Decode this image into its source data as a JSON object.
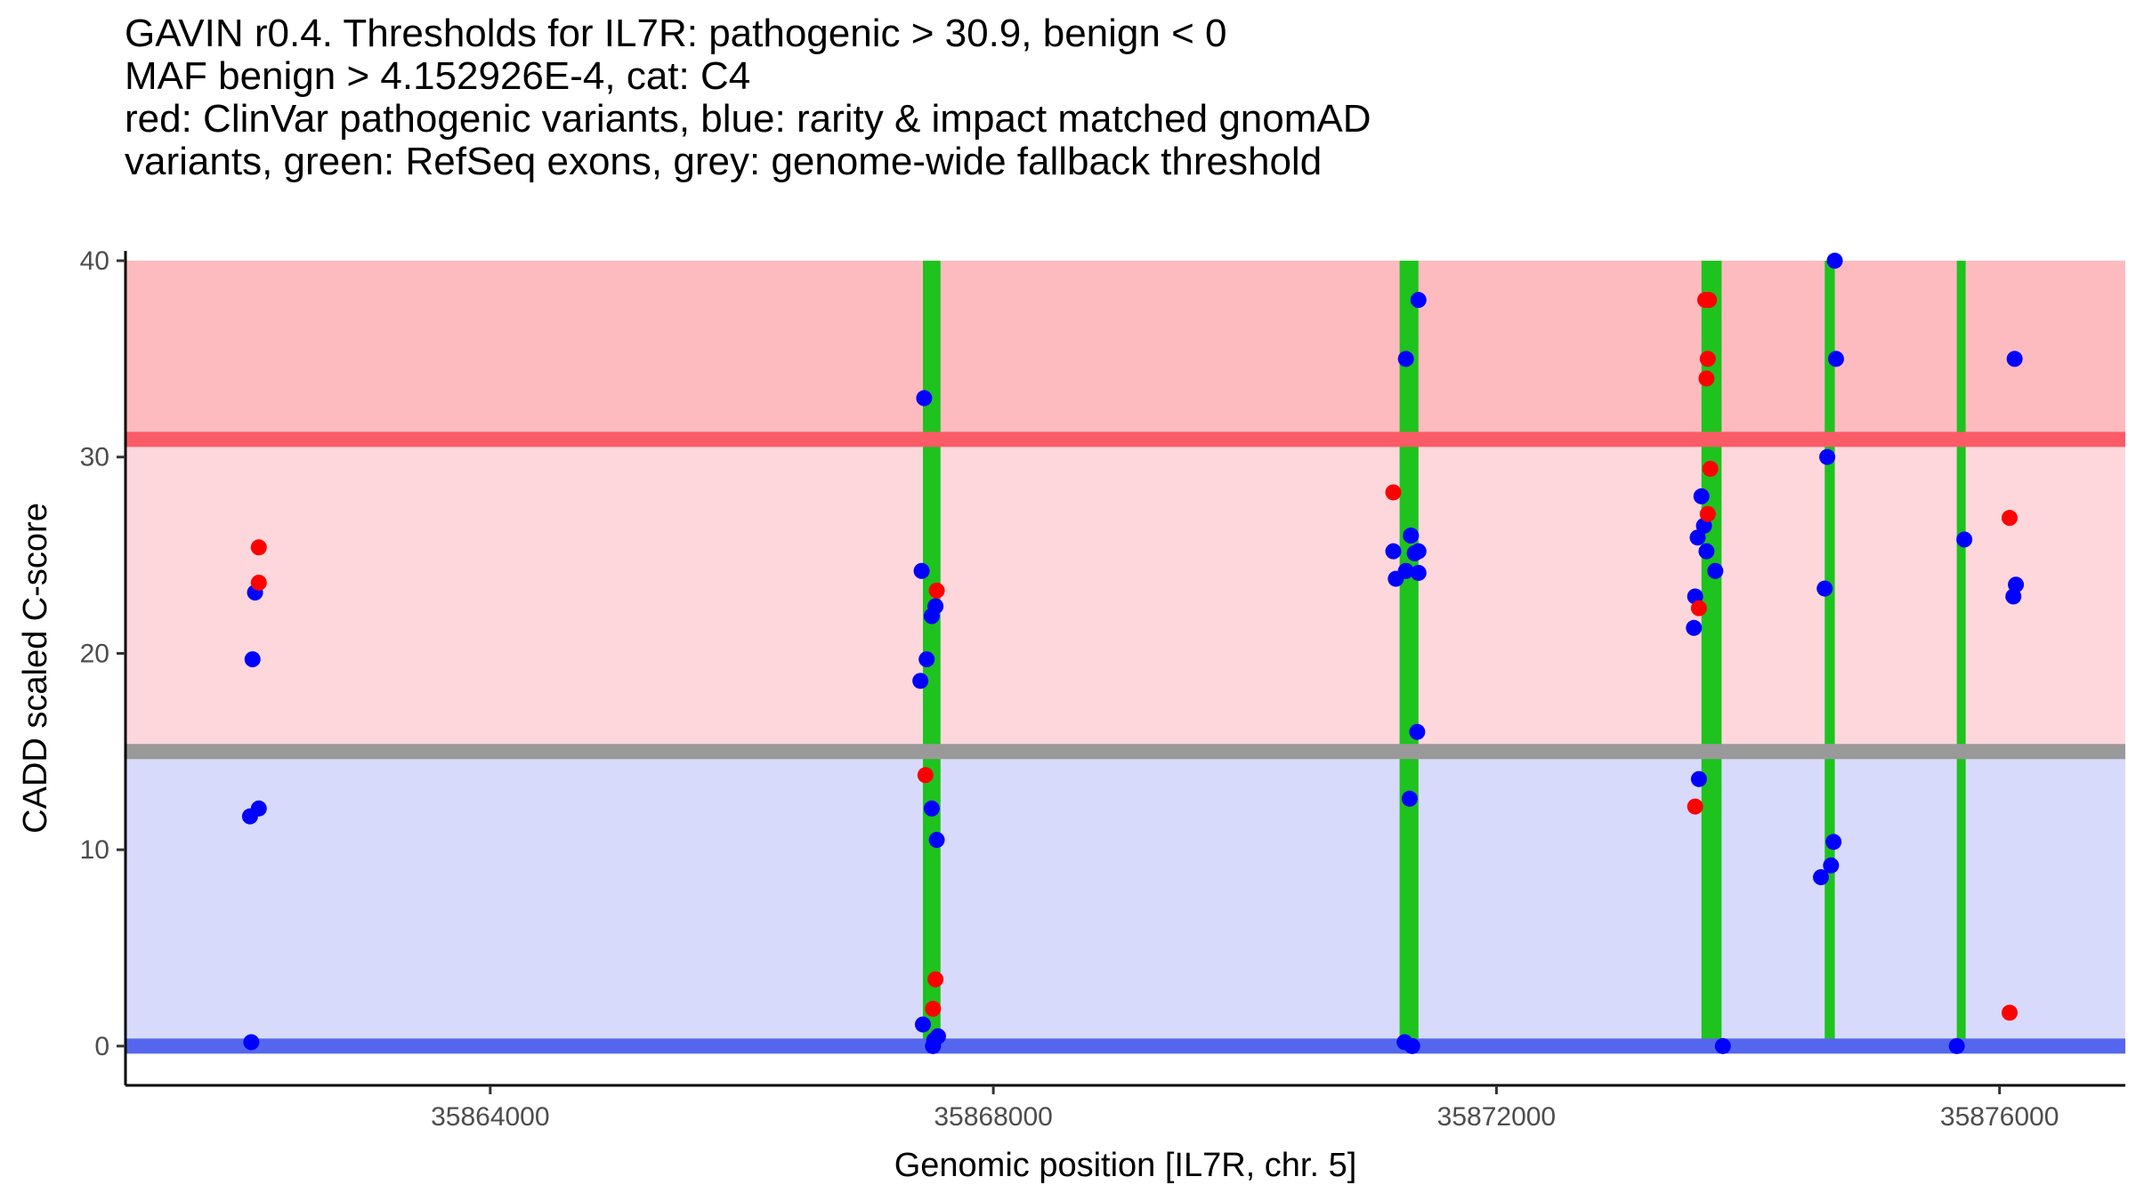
{
  "title_lines": [
    "GAVIN r0.4. Thresholds for IL7R: pathogenic > 30.9, benign < 0",
    "MAF benign > 4.152926E-4, cat: C4",
    "red: ClinVar pathogenic variants, blue: rarity & impact matched gnomAD",
    "variants, green: RefSeq exons, grey: genome-wide fallback threshold"
  ],
  "chart_data": {
    "type": "scatter",
    "xlabel": "Genomic position [IL7R, chr. 5]",
    "ylabel": "CADD scaled C-score",
    "xlim": [
      35861100,
      35877000
    ],
    "ylim": [
      -2,
      40.5
    ],
    "x_ticks": [
      35864000,
      35868000,
      35872000,
      35876000
    ],
    "x_tick_labels": [
      "35864000",
      "35868000",
      "35872000",
      "35876000"
    ],
    "y_ticks": [
      0,
      10,
      20,
      30,
      40
    ],
    "y_tick_labels": [
      "0",
      "10",
      "20",
      "30",
      "40"
    ],
    "grid": false,
    "bands": [
      {
        "color": "#fdbbc0",
        "y_from": 30.9,
        "y_to": 40
      },
      {
        "color": "#fdd7dc",
        "y_from": 15,
        "y_to": 30.9
      },
      {
        "color": "#d8dafb",
        "y_from": 0,
        "y_to": 15
      }
    ],
    "threshold_lines": [
      {
        "color": "#fb5b66",
        "y": 30.9
      },
      {
        "color": "#999999",
        "y": 15
      },
      {
        "color": "#5566ee",
        "y": 0
      }
    ],
    "exons": [
      {
        "start": 35867440,
        "end": 35867580
      },
      {
        "start": 35871230,
        "end": 35871380
      },
      {
        "start": 35873630,
        "end": 35873790
      },
      {
        "start": 35874610,
        "end": 35874690
      },
      {
        "start": 35875660,
        "end": 35875730
      }
    ],
    "colors": {
      "pathogenic": "#ff0000",
      "gnomad": "#0000ff",
      "exon": "#1ec31e"
    },
    "series": [
      {
        "name": "ClinVar pathogenic variants",
        "color": "#ff0000",
        "points": [
          [
            35862160,
            25.4
          ],
          [
            35862160,
            23.6
          ],
          [
            35867460,
            13.8
          ],
          [
            35867550,
            23.2
          ],
          [
            35867540,
            3.4
          ],
          [
            35867520,
            1.9
          ],
          [
            35871180,
            28.2
          ],
          [
            35873660,
            38.0
          ],
          [
            35873690,
            38.0
          ],
          [
            35873680,
            35.0
          ],
          [
            35873670,
            34.0
          ],
          [
            35873700,
            29.4
          ],
          [
            35873680,
            27.1
          ],
          [
            35873610,
            22.3
          ],
          [
            35873580,
            12.2
          ],
          [
            35876080,
            26.9
          ],
          [
            35876080,
            1.7
          ]
        ]
      },
      {
        "name": "gnomAD variants",
        "color": "#0000ff",
        "points": [
          [
            35862130,
            23.1
          ],
          [
            35862110,
            19.7
          ],
          [
            35862160,
            12.1
          ],
          [
            35862090,
            11.7
          ],
          [
            35862100,
            0.2
          ],
          [
            35867450,
            33.0
          ],
          [
            35867430,
            24.2
          ],
          [
            35867540,
            22.4
          ],
          [
            35867510,
            21.9
          ],
          [
            35867470,
            19.7
          ],
          [
            35867420,
            18.6
          ],
          [
            35867510,
            12.1
          ],
          [
            35867550,
            10.5
          ],
          [
            35867440,
            1.1
          ],
          [
            35867560,
            0.5
          ],
          [
            35867530,
            0.3
          ],
          [
            35867520,
            0.0
          ],
          [
            35871380,
            38.0
          ],
          [
            35871280,
            35.0
          ],
          [
            35871320,
            26.0
          ],
          [
            35871180,
            25.2
          ],
          [
            35871380,
            25.2
          ],
          [
            35871350,
            25.1
          ],
          [
            35871280,
            24.2
          ],
          [
            35871380,
            24.1
          ],
          [
            35871200,
            23.8
          ],
          [
            35871370,
            16.0
          ],
          [
            35871310,
            12.6
          ],
          [
            35871270,
            0.2
          ],
          [
            35871330,
            0.0
          ],
          [
            35873630,
            28.0
          ],
          [
            35873650,
            26.5
          ],
          [
            35873600,
            25.9
          ],
          [
            35873670,
            25.2
          ],
          [
            35873740,
            24.2
          ],
          [
            35873580,
            22.9
          ],
          [
            35873570,
            21.3
          ],
          [
            35873610,
            13.6
          ],
          [
            35873800,
            0.0
          ],
          [
            35874690,
            40.0
          ],
          [
            35874700,
            35.0
          ],
          [
            35874630,
            30.0
          ],
          [
            35874610,
            23.3
          ],
          [
            35874680,
            10.4
          ],
          [
            35874660,
            9.2
          ],
          [
            35874580,
            8.6
          ],
          [
            35875720,
            25.8
          ],
          [
            35875660,
            0.0
          ],
          [
            35876120,
            35.0
          ],
          [
            35876130,
            23.5
          ],
          [
            35876110,
            22.9
          ]
        ]
      }
    ]
  }
}
